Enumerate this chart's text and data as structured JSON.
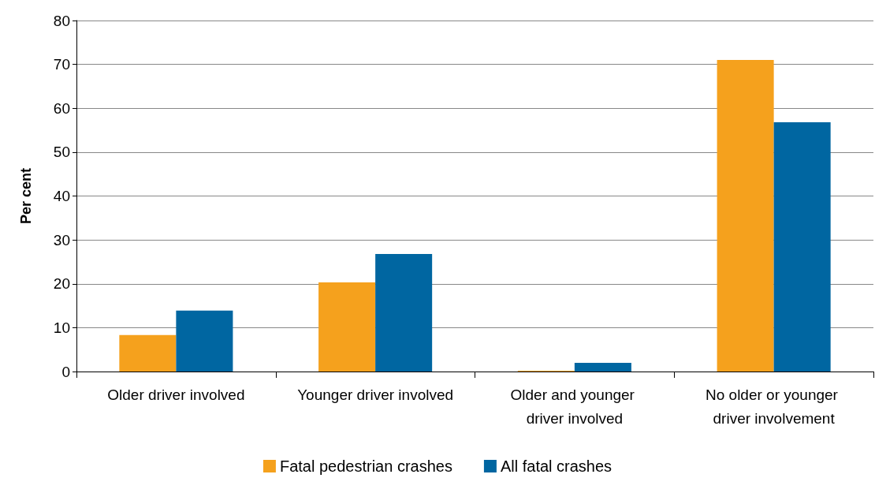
{
  "chart_data": {
    "type": "bar",
    "ylabel": "Per cent",
    "categories": [
      "Older driver involved",
      "Younger driver involved",
      "Older and younger driver involved",
      "No older or younger driver involvement"
    ],
    "series": [
      {
        "name": "Fatal pedestrian crashes",
        "color": "#f5a11d",
        "values": [
          8.3,
          20.3,
          0.2,
          71
        ]
      },
      {
        "name": "All fatal crashes",
        "color": "#0066a1",
        "values": [
          13.9,
          26.8,
          2,
          56.8
        ]
      }
    ],
    "ylim": [
      0,
      80
    ],
    "yticks": [
      0,
      10,
      20,
      30,
      40,
      50,
      60,
      70,
      80
    ],
    "grid": "y",
    "legend": "bottom"
  }
}
